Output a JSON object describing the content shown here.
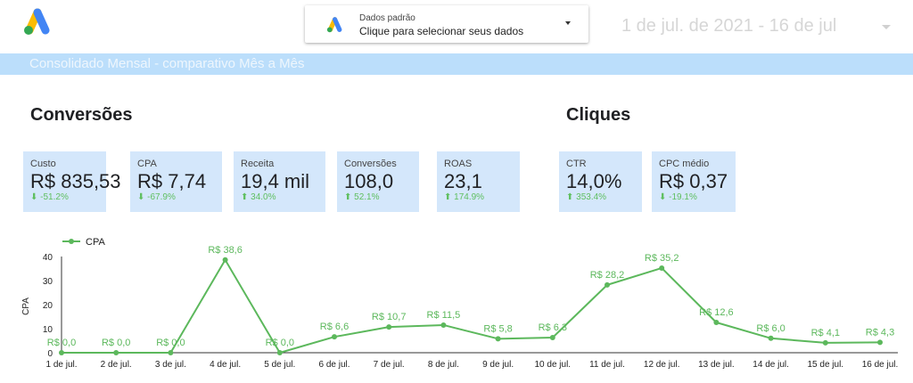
{
  "header": {
    "data_source": {
      "caption": "Dados padrão",
      "value": "Clique para selecionar seus dados"
    },
    "date_range": "1 de jul. de 2021 - 16 de jul"
  },
  "banner": {
    "title": "Consolidado Mensal - comparativo Mês a Mês"
  },
  "sections": {
    "conversions": "Conversões",
    "clicks": "Cliques"
  },
  "scorecards": [
    {
      "label": "Custo",
      "value": "R$ 835,53",
      "delta": "⬇ -51.2%"
    },
    {
      "label": "CPA",
      "value": "R$ 7,74",
      "delta": "⬇ -67.9%"
    },
    {
      "label": "Receita",
      "value": "19,4 mil",
      "delta": "⬆ 34.0%"
    },
    {
      "label": "Conversões",
      "value": "108,0",
      "delta": "⬆ 52.1%"
    },
    {
      "label": "ROAS",
      "value": "23,1",
      "delta": "⬆ 174.9%"
    },
    {
      "label": "CTR",
      "value": "14,0%",
      "delta": "⬆ 353.4%"
    },
    {
      "label": "CPC médio",
      "value": "R$ 0,37",
      "delta": "⬇ -19.1%"
    }
  ],
  "colors": {
    "series": "#5cb85c",
    "banner": "#bbdefb",
    "card": "#d4e7fb",
    "delta": "#5fbf5f"
  },
  "chart_data": {
    "type": "line",
    "ylabel": "CPA",
    "xlabel": "",
    "ylim": [
      0,
      40
    ],
    "yticks": [
      0,
      10,
      20,
      30,
      40
    ],
    "categories": [
      "1 de jul.",
      "2 de jul.",
      "3 de jul.",
      "4 de jul.",
      "5 de jul.",
      "6 de jul.",
      "7 de jul.",
      "8 de jul.",
      "9 de jul.",
      "10 de jul.",
      "11 de jul.",
      "12 de jul.",
      "13 de jul.",
      "14 de jul.",
      "15 de jul.",
      "16 de jul."
    ],
    "legend_position": "top-left",
    "series": [
      {
        "name": "CPA",
        "values": [
          0.0,
          0.0,
          0.0,
          38.6,
          0.0,
          6.6,
          10.7,
          11.5,
          5.8,
          6.3,
          28.2,
          35.2,
          12.6,
          6.0,
          4.1,
          4.3
        ],
        "labels": [
          "R$ 0,0",
          "R$ 0,0",
          "R$ 0,0",
          "R$ 38,6",
          "R$ 0,0",
          "R$ 6,6",
          "R$ 10,7",
          "R$ 11,5",
          "R$ 5,8",
          "R$ 6,3",
          "R$ 28,2",
          "R$ 35,2",
          "R$ 12,6",
          "R$ 6,0",
          "R$ 4,1",
          "R$ 4,3"
        ]
      }
    ]
  }
}
